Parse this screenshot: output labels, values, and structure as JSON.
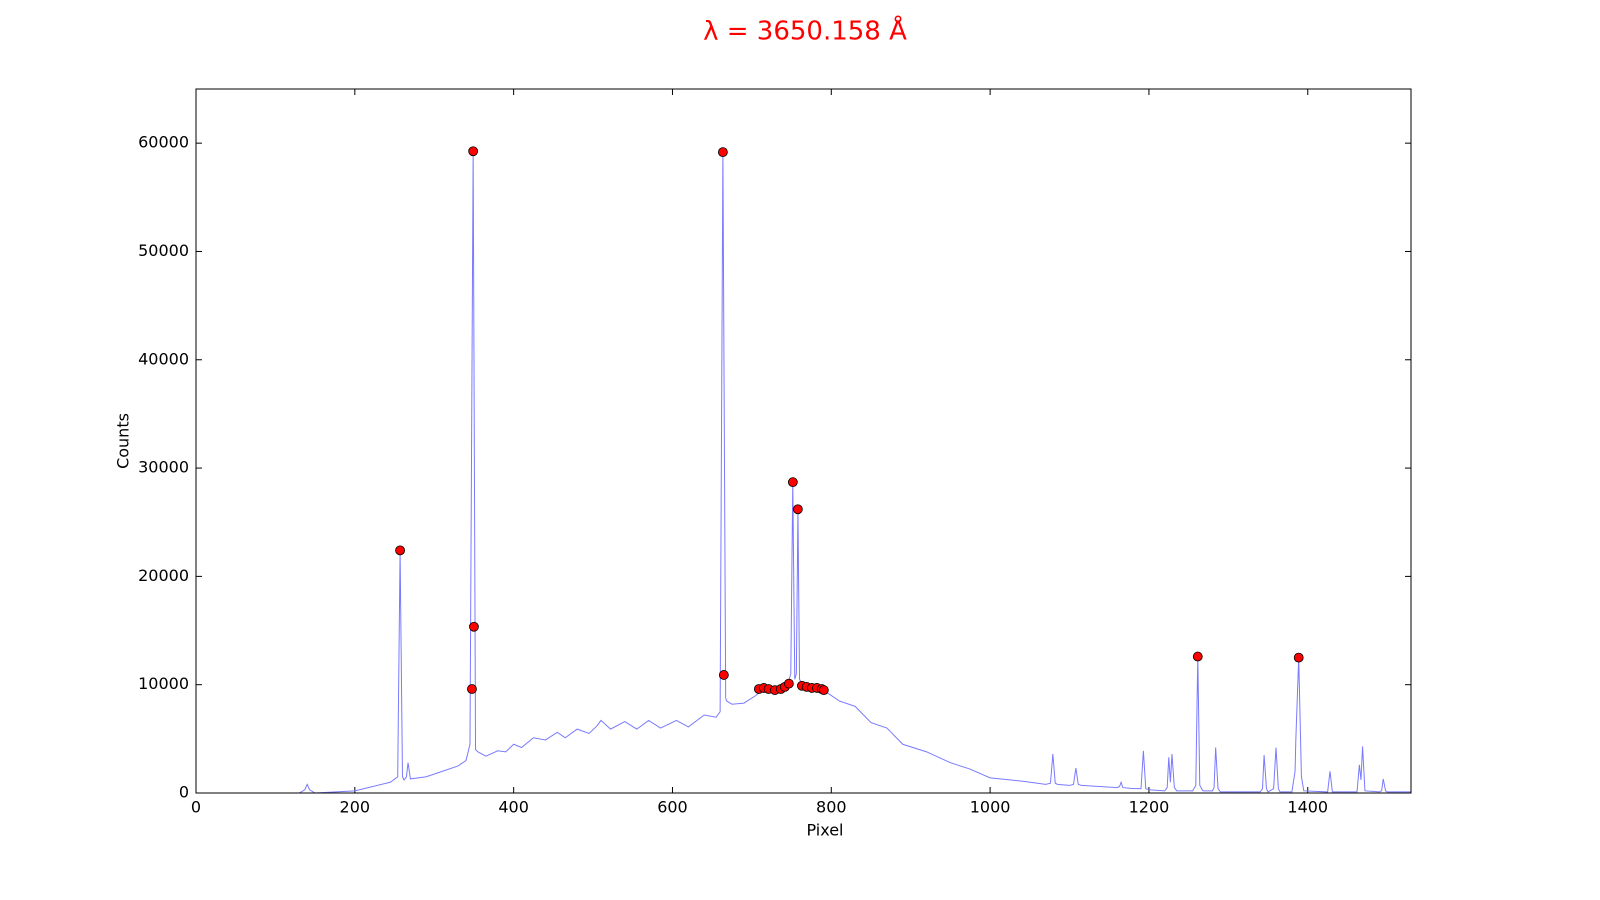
{
  "chart_data": {
    "type": "line",
    "title": "λ = 3650.158 Å",
    "x_label": "Pixel",
    "y_label": "Counts",
    "xlim": [
      0,
      1530
    ],
    "ylim": [
      0,
      65000
    ],
    "xticks": [
      0,
      200,
      400,
      600,
      800,
      1000,
      1200,
      1400
    ],
    "yticks": [
      0,
      10000,
      20000,
      30000,
      40000,
      50000,
      60000
    ],
    "grid": false,
    "series": [
      {
        "style": "line",
        "color": "#7a7aff",
        "x": [
          0,
          130,
          137,
          140,
          143,
          150,
          200,
          245,
          254,
          257,
          260,
          262,
          265,
          267,
          270,
          290,
          310,
          330,
          340,
          345,
          349,
          352,
          355,
          365,
          380,
          390,
          400,
          410,
          425,
          440,
          455,
          465,
          480,
          495,
          505,
          510,
          522,
          540,
          555,
          570,
          585,
          605,
          620,
          640,
          655,
          660,
          663.5,
          667,
          668,
          675,
          690,
          705,
          715,
          730,
          745,
          749,
          751.5,
          754,
          756,
          758,
          760,
          765,
          790,
          810,
          830,
          850,
          870,
          890,
          920,
          950,
          975,
          1000,
          1040,
          1070,
          1076,
          1079,
          1082,
          1085,
          1100,
          1105,
          1108,
          1111,
          1115,
          1160,
          1163,
          1165,
          1167,
          1180,
          1190,
          1193,
          1196,
          1200,
          1220,
          1223,
          1225,
          1227,
          1229,
          1232,
          1235,
          1255,
          1259,
          1261.5,
          1264,
          1268,
          1280,
          1282,
          1284,
          1287,
          1290,
          1340,
          1343,
          1345,
          1348,
          1350,
          1357,
          1360,
          1363,
          1365,
          1380,
          1384,
          1385,
          1388.6,
          1392,
          1395,
          1425,
          1428,
          1431,
          1462,
          1465,
          1467,
          1469,
          1472,
          1490,
          1493,
          1495,
          1498,
          1500,
          1530
        ],
        "values": [
          0,
          0,
          300,
          800,
          300,
          0,
          200,
          1000,
          1500,
          22400,
          1500,
          1200,
          1500,
          2800,
          1300,
          1500,
          2000,
          2500,
          3000,
          4500,
          59250,
          4000,
          3800,
          3400,
          3900,
          3800,
          4500,
          4200,
          5100,
          4900,
          5600,
          5100,
          5900,
          5500,
          6200,
          6700,
          5900,
          6600,
          5900,
          6700,
          6000,
          6700,
          6100,
          7200,
          7000,
          7500,
          59170,
          8800,
          8500,
          8200,
          8300,
          9000,
          9600,
          9500,
          10000,
          11000,
          28700,
          10500,
          11000,
          26200,
          10500,
          9800,
          9500,
          8500,
          8000,
          6500,
          6000,
          4500,
          3800,
          2800,
          2200,
          1400,
          1100,
          800,
          900,
          3600,
          900,
          800,
          700,
          800,
          2300,
          800,
          700,
          500,
          600,
          1000,
          500,
          400,
          400,
          3900,
          400,
          300,
          200,
          500,
          3300,
          1000,
          3600,
          500,
          200,
          200,
          700,
          12600,
          700,
          200,
          200,
          500,
          4200,
          400,
          100,
          100,
          400,
          3500,
          400,
          100,
          400,
          4200,
          400,
          100,
          100,
          2000,
          5000,
          12500,
          1500,
          200,
          100,
          2000,
          100,
          100,
          2600,
          1200,
          4300,
          200,
          100,
          200,
          1300,
          200,
          100,
          100
        ]
      },
      {
        "style": "markers",
        "color": "#ff0000",
        "x": [
          257,
          349,
          350,
          347.5,
          663.5,
          664.7,
          708.8,
          715,
          721,
          729,
          736.5,
          741.5,
          746.6,
          751.6,
          757.9,
          763,
          769,
          775.5,
          782,
          788,
          790.6,
          1261.5,
          1388.6
        ],
        "values": [
          22400,
          59250,
          15350,
          9600,
          59170,
          10900,
          9600,
          9700,
          9600,
          9500,
          9600,
          9800,
          10100,
          28700,
          26200,
          9900,
          9800,
          9700,
          9700,
          9600,
          9500,
          12600,
          12500
        ]
      }
    ]
  }
}
